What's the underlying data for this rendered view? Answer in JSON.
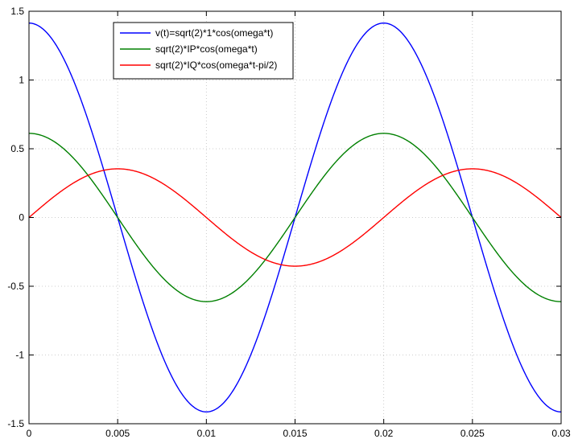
{
  "chart_data": {
    "type": "line",
    "title": "",
    "xlabel": "",
    "ylabel": "",
    "xlim": [
      0,
      0.03
    ],
    "ylim": [
      -1.5,
      1.5
    ],
    "grid": true,
    "legend_position": "top-left",
    "x_ticks": [
      "0",
      "0.005",
      "0.01",
      "0.015",
      "0.02",
      "0.025",
      "0.03"
    ],
    "x_tick_values": [
      0,
      0.005,
      0.01,
      0.015,
      0.02,
      0.025,
      0.03
    ],
    "y_ticks": [
      "1.5",
      "1",
      "0.5",
      "0",
      "-0.5",
      "-1",
      "-1.5"
    ],
    "y_tick_values": [
      1.5,
      1,
      0.5,
      0,
      -0.5,
      -1,
      -1.5
    ],
    "x": [
      0,
      0.0025,
      0.005,
      0.0075,
      0.01,
      0.0125,
      0.015,
      0.0175,
      0.02,
      0.0225,
      0.025,
      0.0275,
      0.03
    ],
    "series": [
      {
        "name": "v(t)=sqrt(2)*1*cos(omega*t)",
        "color": "#0000ff",
        "values": [
          1.414,
          1.0,
          0.0,
          -1.0,
          -1.414,
          -1.0,
          0.0,
          1.0,
          1.414,
          1.0,
          0.0,
          -1.0,
          -1.414
        ]
      },
      {
        "name": "sqrt(2)*IP*cos(omega*t)",
        "color": "#008000",
        "values": [
          0.612,
          0.433,
          0.0,
          -0.433,
          -0.612,
          -0.433,
          0.0,
          0.433,
          0.612,
          0.433,
          0.0,
          -0.433,
          -0.612
        ]
      },
      {
        "name": "sqrt(2)*IQ*cos(omega*t-pi/2)",
        "color": "#ff0000",
        "values": [
          0.0,
          0.25,
          0.354,
          0.25,
          0.0,
          -0.25,
          -0.354,
          -0.25,
          0.0,
          0.25,
          0.354,
          0.25,
          0.0
        ]
      }
    ]
  }
}
